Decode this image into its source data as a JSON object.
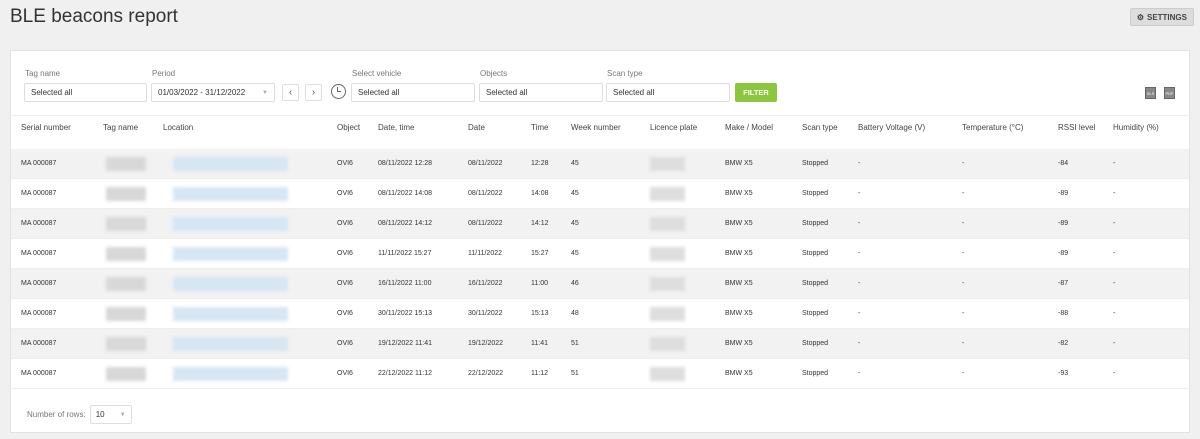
{
  "title": "BLE beacons report",
  "settings_label": "SETTINGS",
  "filters": {
    "tag_name": {
      "label": "Tag name",
      "value": "Selected all"
    },
    "period": {
      "label": "Period",
      "value": "01/03/2022 - 31/12/2022"
    },
    "vehicle": {
      "label": "Select vehicle",
      "value": "Selected all"
    },
    "objects": {
      "label": "Objects",
      "value": "Selected all"
    },
    "scan_type": {
      "label": "Scan type",
      "value": "Selected all"
    },
    "filter_label": "FILTER",
    "prev": "‹",
    "next": "›",
    "export_xls": "XLS",
    "export_pdf": "PDF"
  },
  "columns": [
    "Serial number",
    "Tag name",
    "Location",
    "Object",
    "Date, time",
    "Date",
    "Time",
    "Week number",
    "Licence plate",
    "Make / Model",
    "Scan type",
    "Battery Voltage (V)",
    "Temperature (°C)",
    "RSSI level",
    "Humidity (%)"
  ],
  "rows": [
    {
      "serial": "MA 000087",
      "object": "OVI6",
      "datetime": "08/11/2022 12:28",
      "date": "08/11/2022",
      "time": "12:28",
      "week": "45",
      "make": "BMW X5",
      "scan": "Stopped",
      "battery": "-",
      "temp": "-",
      "rssi": "-84",
      "humidity": "-"
    },
    {
      "serial": "MA 000087",
      "object": "OVI6",
      "datetime": "08/11/2022 14:08",
      "date": "08/11/2022",
      "time": "14:08",
      "week": "45",
      "make": "BMW X5",
      "scan": "Stopped",
      "battery": "-",
      "temp": "-",
      "rssi": "-89",
      "humidity": "-"
    },
    {
      "serial": "MA 000087",
      "object": "OVI6",
      "datetime": "08/11/2022 14:12",
      "date": "08/11/2022",
      "time": "14:12",
      "week": "45",
      "make": "BMW X5",
      "scan": "Stopped",
      "battery": "-",
      "temp": "-",
      "rssi": "-89",
      "humidity": "-"
    },
    {
      "serial": "MA 000087",
      "object": "OVI6",
      "datetime": "11/11/2022 15:27",
      "date": "11/11/2022",
      "time": "15:27",
      "week": "45",
      "make": "BMW X5",
      "scan": "Stopped",
      "battery": "-",
      "temp": "-",
      "rssi": "-89",
      "humidity": "-"
    },
    {
      "serial": "MA 000087",
      "object": "OVI6",
      "datetime": "16/11/2022 11:00",
      "date": "16/11/2022",
      "time": "11:00",
      "week": "46",
      "make": "BMW X5",
      "scan": "Stopped",
      "battery": "-",
      "temp": "-",
      "rssi": "-87",
      "humidity": "-"
    },
    {
      "serial": "MA 000087",
      "object": "OVI6",
      "datetime": "30/11/2022 15:13",
      "date": "30/11/2022",
      "time": "15:13",
      "week": "48",
      "make": "BMW X5",
      "scan": "Stopped",
      "battery": "-",
      "temp": "-",
      "rssi": "-88",
      "humidity": "-"
    },
    {
      "serial": "MA 000087",
      "object": "OVI6",
      "datetime": "19/12/2022 11:41",
      "date": "19/12/2022",
      "time": "11:41",
      "week": "51",
      "make": "BMW X5",
      "scan": "Stopped",
      "battery": "-",
      "temp": "-",
      "rssi": "-82",
      "humidity": "-"
    },
    {
      "serial": "MA 000087",
      "object": "OVI6",
      "datetime": "22/12/2022 11:12",
      "date": "22/12/2022",
      "time": "11:12",
      "week": "51",
      "make": "BMW X5",
      "scan": "Stopped",
      "battery": "-",
      "temp": "-",
      "rssi": "-93",
      "humidity": "-"
    }
  ],
  "footer": {
    "rows_label": "Number of rows:",
    "rows_value": "10"
  }
}
